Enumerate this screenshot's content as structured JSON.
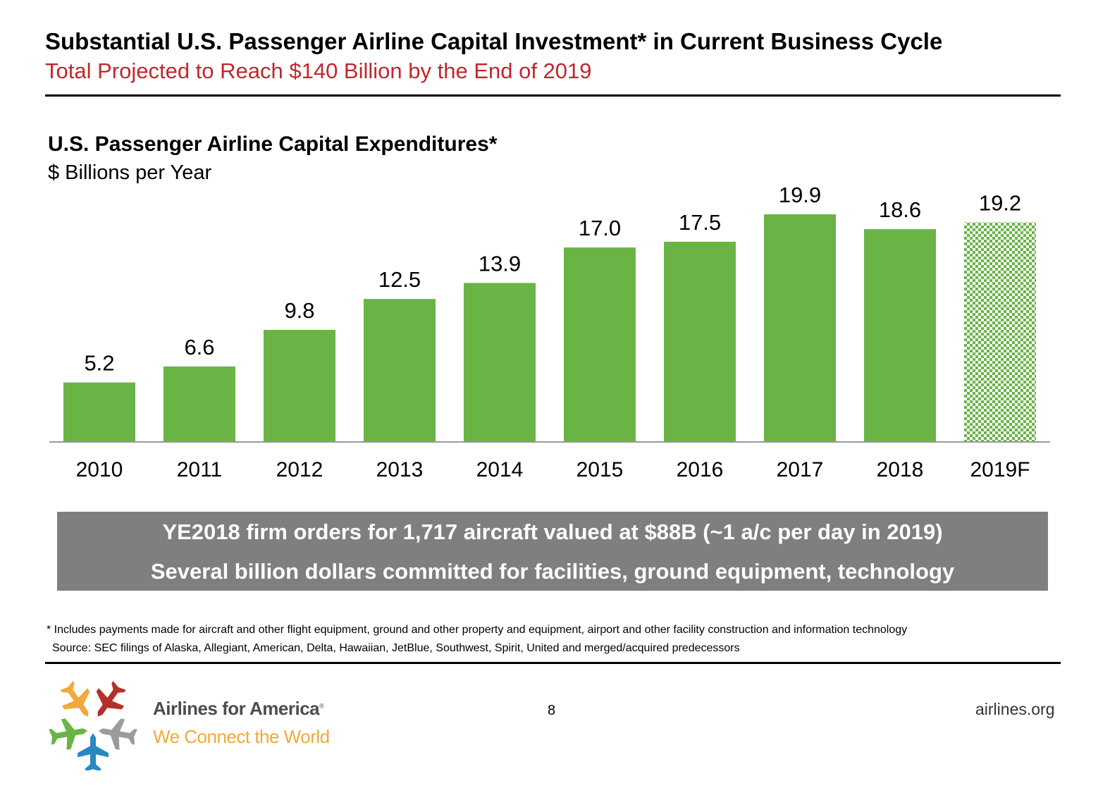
{
  "header": {
    "title": "Substantial U.S. Passenger Airline Capital Investment* in Current Business Cycle",
    "subtitle": "Total Projected to Reach $140 Billion by the End of 2019"
  },
  "chart_data": {
    "type": "bar",
    "title": "U.S. Passenger Airline Capital Expenditures*",
    "subtitle": "$ Billions per Year",
    "categories": [
      "2010",
      "2011",
      "2012",
      "2013",
      "2014",
      "2015",
      "2016",
      "2017",
      "2018",
      "2019F"
    ],
    "values": [
      5.2,
      6.6,
      9.8,
      12.5,
      13.9,
      17.0,
      17.5,
      19.9,
      18.6,
      19.2
    ],
    "labels": [
      "5.2",
      "6.6",
      "9.8",
      "12.5",
      "13.9",
      "17.0",
      "17.5",
      "19.9",
      "18.6",
      "19.2"
    ],
    "forecast": [
      false,
      false,
      false,
      false,
      false,
      false,
      false,
      false,
      false,
      true
    ],
    "bar_color": "#6ab446",
    "ylim": [
      0,
      20
    ],
    "grid": false,
    "y_axis_shown": false
  },
  "callout": {
    "line1": "YE2018 firm orders for 1,717 aircraft valued at $88B (~1 a/c per day in 2019)",
    "line2": "Several billion dollars committed for facilities, ground equipment, technology"
  },
  "footnotes": {
    "note": "* Includes payments made for aircraft and other flight equipment, ground and other property and equipment, airport and other facility construction and information technology",
    "source": "Source: SEC filings of Alaska, Allegiant, American, Delta, Hawaiian, JetBlue, Southwest, Spirit, United and merged/acquired predecessors"
  },
  "footer": {
    "org": "Airlines for America",
    "registered": "®",
    "tagline": "We Connect the World",
    "page": "8",
    "site": "airlines.org",
    "logo_colors": [
      "#f2a93b",
      "#b5302a",
      "#9b9b9b",
      "#2a88c0",
      "#6ab446"
    ]
  }
}
